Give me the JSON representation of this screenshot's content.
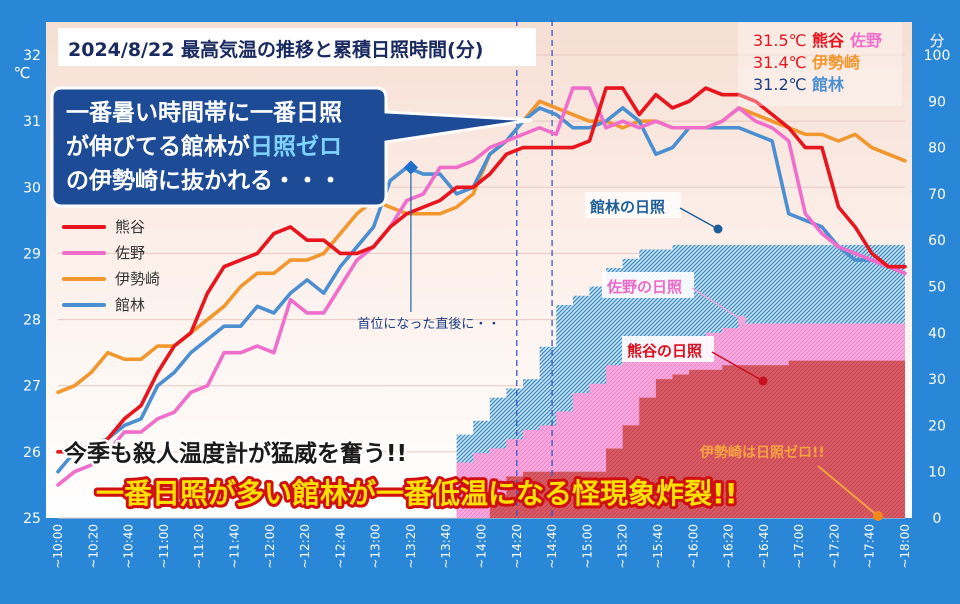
{
  "chart_data": {
    "type": "line",
    "title": "2024/8/22  最高気温の推移と累積日照時間(分)",
    "y_left_unit": "℃",
    "y_right_unit": "分",
    "ylim_left": [
      25,
      32
    ],
    "ylim_right": [
      0,
      100
    ],
    "y_left_ticks": [
      "25",
      "26",
      "27",
      "28",
      "29",
      "30",
      "31",
      "32"
    ],
    "y_right_ticks": [
      "0",
      "10",
      "20",
      "30",
      "40",
      "50",
      "60",
      "70",
      "80",
      "90",
      "100"
    ],
    "x_tick_labels": [
      "~10:00",
      "~10:20",
      "~10:40",
      "~11:00",
      "~11:20",
      "~11:40",
      "~12:00",
      "~12:20",
      "~12:40",
      "~13:00",
      "~13:20",
      "~13:40",
      "~14:00",
      "~14:20",
      "~14:40",
      "~15:00",
      "~15:20",
      "~15:40",
      "~16:00",
      "~16:20",
      "~16:40",
      "~17:00",
      "~17:20",
      "~17:40",
      "~18:00"
    ],
    "x_minutes_start": "10:00",
    "x_minutes_end": "18:00",
    "temperature_series": [
      {
        "name": "熊谷",
        "color": "#e8141e",
        "values": [
          26.0,
          26.0,
          26.0,
          26.2,
          26.5,
          26.7,
          27.2,
          27.6,
          27.8,
          28.4,
          28.8,
          28.9,
          29.0,
          29.3,
          29.4,
          29.2,
          29.2,
          29.0,
          29.0,
          29.1,
          29.4,
          29.6,
          29.7,
          29.8,
          30.0,
          30.0,
          30.2,
          30.5,
          30.6,
          30.6,
          30.6,
          30.6,
          30.7,
          31.5,
          31.5,
          31.1,
          31.4,
          31.2,
          31.3,
          31.5,
          31.4,
          31.4,
          31.3,
          31.1,
          30.9,
          30.6,
          30.6,
          29.7,
          29.4,
          29.0,
          28.8,
          28.8
        ]
      },
      {
        "name": "佐野",
        "color": "#f06ecb",
        "values": [
          25.5,
          25.7,
          25.8,
          26.0,
          26.3,
          26.3,
          26.5,
          26.6,
          26.9,
          27.0,
          27.5,
          27.5,
          27.6,
          27.5,
          28.3,
          28.1,
          28.1,
          28.5,
          28.9,
          29.1,
          29.4,
          29.8,
          29.9,
          30.3,
          30.3,
          30.4,
          30.6,
          30.7,
          30.8,
          30.9,
          30.8,
          31.5,
          31.5,
          30.9,
          31.0,
          30.9,
          31.0,
          30.9,
          30.9,
          30.9,
          31.0,
          31.2,
          31.0,
          30.9,
          30.7,
          29.6,
          29.3,
          29.1,
          29.0,
          28.9,
          28.8,
          28.7
        ]
      },
      {
        "name": "伊勢崎",
        "color": "#f2962e",
        "values": [
          26.9,
          27.0,
          27.2,
          27.5,
          27.4,
          27.4,
          27.6,
          27.6,
          27.8,
          28.0,
          28.2,
          28.5,
          28.7,
          28.7,
          28.9,
          28.9,
          29.0,
          29.3,
          29.6,
          29.8,
          29.7,
          29.6,
          29.6,
          29.6,
          29.7,
          29.9,
          30.5,
          30.7,
          31.0,
          31.3,
          31.2,
          31.1,
          31.0,
          31.0,
          30.9,
          31.0,
          31.0,
          30.9,
          30.9,
          30.9,
          31.0,
          31.2,
          31.1,
          31.0,
          30.9,
          30.8,
          30.8,
          30.7,
          30.8,
          30.6,
          30.5,
          30.4
        ]
      },
      {
        "name": "館林",
        "color": "#4b8fd1",
        "values": [
          25.7,
          26.0,
          26.1,
          26.2,
          26.4,
          26.5,
          27.0,
          27.2,
          27.5,
          27.7,
          27.9,
          27.9,
          28.2,
          28.1,
          28.4,
          28.6,
          28.4,
          28.8,
          29.1,
          29.4,
          30.1,
          30.3,
          30.2,
          30.2,
          29.9,
          30.0,
          30.5,
          30.7,
          31.0,
          31.2,
          31.1,
          30.9,
          30.9,
          31.0,
          31.2,
          31.0,
          30.5,
          30.6,
          30.9,
          30.9,
          30.9,
          30.9,
          30.8,
          30.7,
          29.6,
          29.5,
          29.4,
          29.1,
          28.9,
          28.9,
          28.8,
          28.8
        ]
      }
    ],
    "sunshine_series": [
      {
        "name": "館林の日照",
        "color": "#3a8dc8",
        "values": [
          0,
          0,
          0,
          0,
          0,
          0,
          0,
          0,
          0,
          0,
          0,
          0,
          0,
          0,
          0,
          0,
          0,
          0,
          0,
          0,
          0,
          0,
          0,
          0,
          18,
          21,
          26,
          28,
          30,
          37,
          46,
          48,
          50,
          54,
          56,
          58,
          58,
          59,
          59,
          59,
          59,
          59,
          59,
          59,
          59,
          59,
          59,
          59,
          59,
          59,
          59,
          59
        ]
      },
      {
        "name": "佐野の日照",
        "color": "#f28bd4",
        "values": [
          0,
          0,
          0,
          0,
          0,
          0,
          0,
          0,
          0,
          0,
          0,
          0,
          0,
          0,
          0,
          0,
          0,
          0,
          0,
          0,
          0,
          0,
          0,
          0,
          12,
          14,
          15,
          17,
          19,
          20,
          23,
          27,
          29,
          33,
          35,
          37,
          38,
          39,
          39,
          40,
          41,
          42,
          42,
          42,
          42,
          42,
          42,
          42,
          42,
          42,
          42,
          42
        ]
      },
      {
        "name": "熊谷の日照",
        "color": "#d94f5c",
        "values": [
          0,
          0,
          0,
          0,
          0,
          0,
          0,
          0,
          0,
          0,
          0,
          0,
          0,
          0,
          0,
          0,
          0,
          0,
          0,
          0,
          0,
          0,
          0,
          0,
          0,
          0,
          5,
          9,
          10,
          10,
          10,
          10,
          10,
          15,
          20,
          26,
          30,
          31,
          32,
          32,
          33,
          33,
          33,
          33,
          34,
          34,
          34,
          34,
          34,
          34,
          34,
          34
        ]
      }
    ],
    "max_temps": [
      {
        "value": "31.5℃",
        "names": [
          "熊谷",
          "佐野"
        ],
        "colors": [
          "#e8141e",
          "#f06ecb"
        ],
        "value_color": "#e8141e"
      },
      {
        "value": "31.4℃",
        "names": [
          "伊勢崎"
        ],
        "colors": [
          "#f2962e"
        ],
        "value_color": "#e8141e"
      },
      {
        "value": "31.2℃",
        "names": [
          "館林"
        ],
        "colors": [
          "#4b8fd1"
        ],
        "value_color": "#1a3f86"
      }
    ],
    "legend": [
      {
        "name": "熊谷",
        "color": "#e8141e"
      },
      {
        "name": "佐野",
        "color": "#f06ecb"
      },
      {
        "name": "伊勢崎",
        "color": "#f2962e"
      },
      {
        "name": "館林",
        "color": "#4b8fd1"
      }
    ],
    "legend_position": "left",
    "annotations": {
      "callout": [
        "一番暑い時間帯に一番日照",
        "が伸びてる館林が",
        "日照ゼロ",
        "の伊勢崎に抜かれる・・・"
      ],
      "first_place": "首位になった直後に・・",
      "tatebayashi_sun": "館林の日照",
      "sano_sun": "佐野の日照",
      "kumagaya_sun": "熊谷の日照",
      "isesaki_zero": "伊勢崎は日照ゼロ!!",
      "line1": "今季も殺人温度計が猛威を奮う!!",
      "line2": "一番日照が多い館林が一番低温になる怪現象炸裂!!"
    },
    "highlight_times": [
      "14:20",
      "14:40"
    ],
    "marker_time": "13:20",
    "marker_series": "館林"
  }
}
